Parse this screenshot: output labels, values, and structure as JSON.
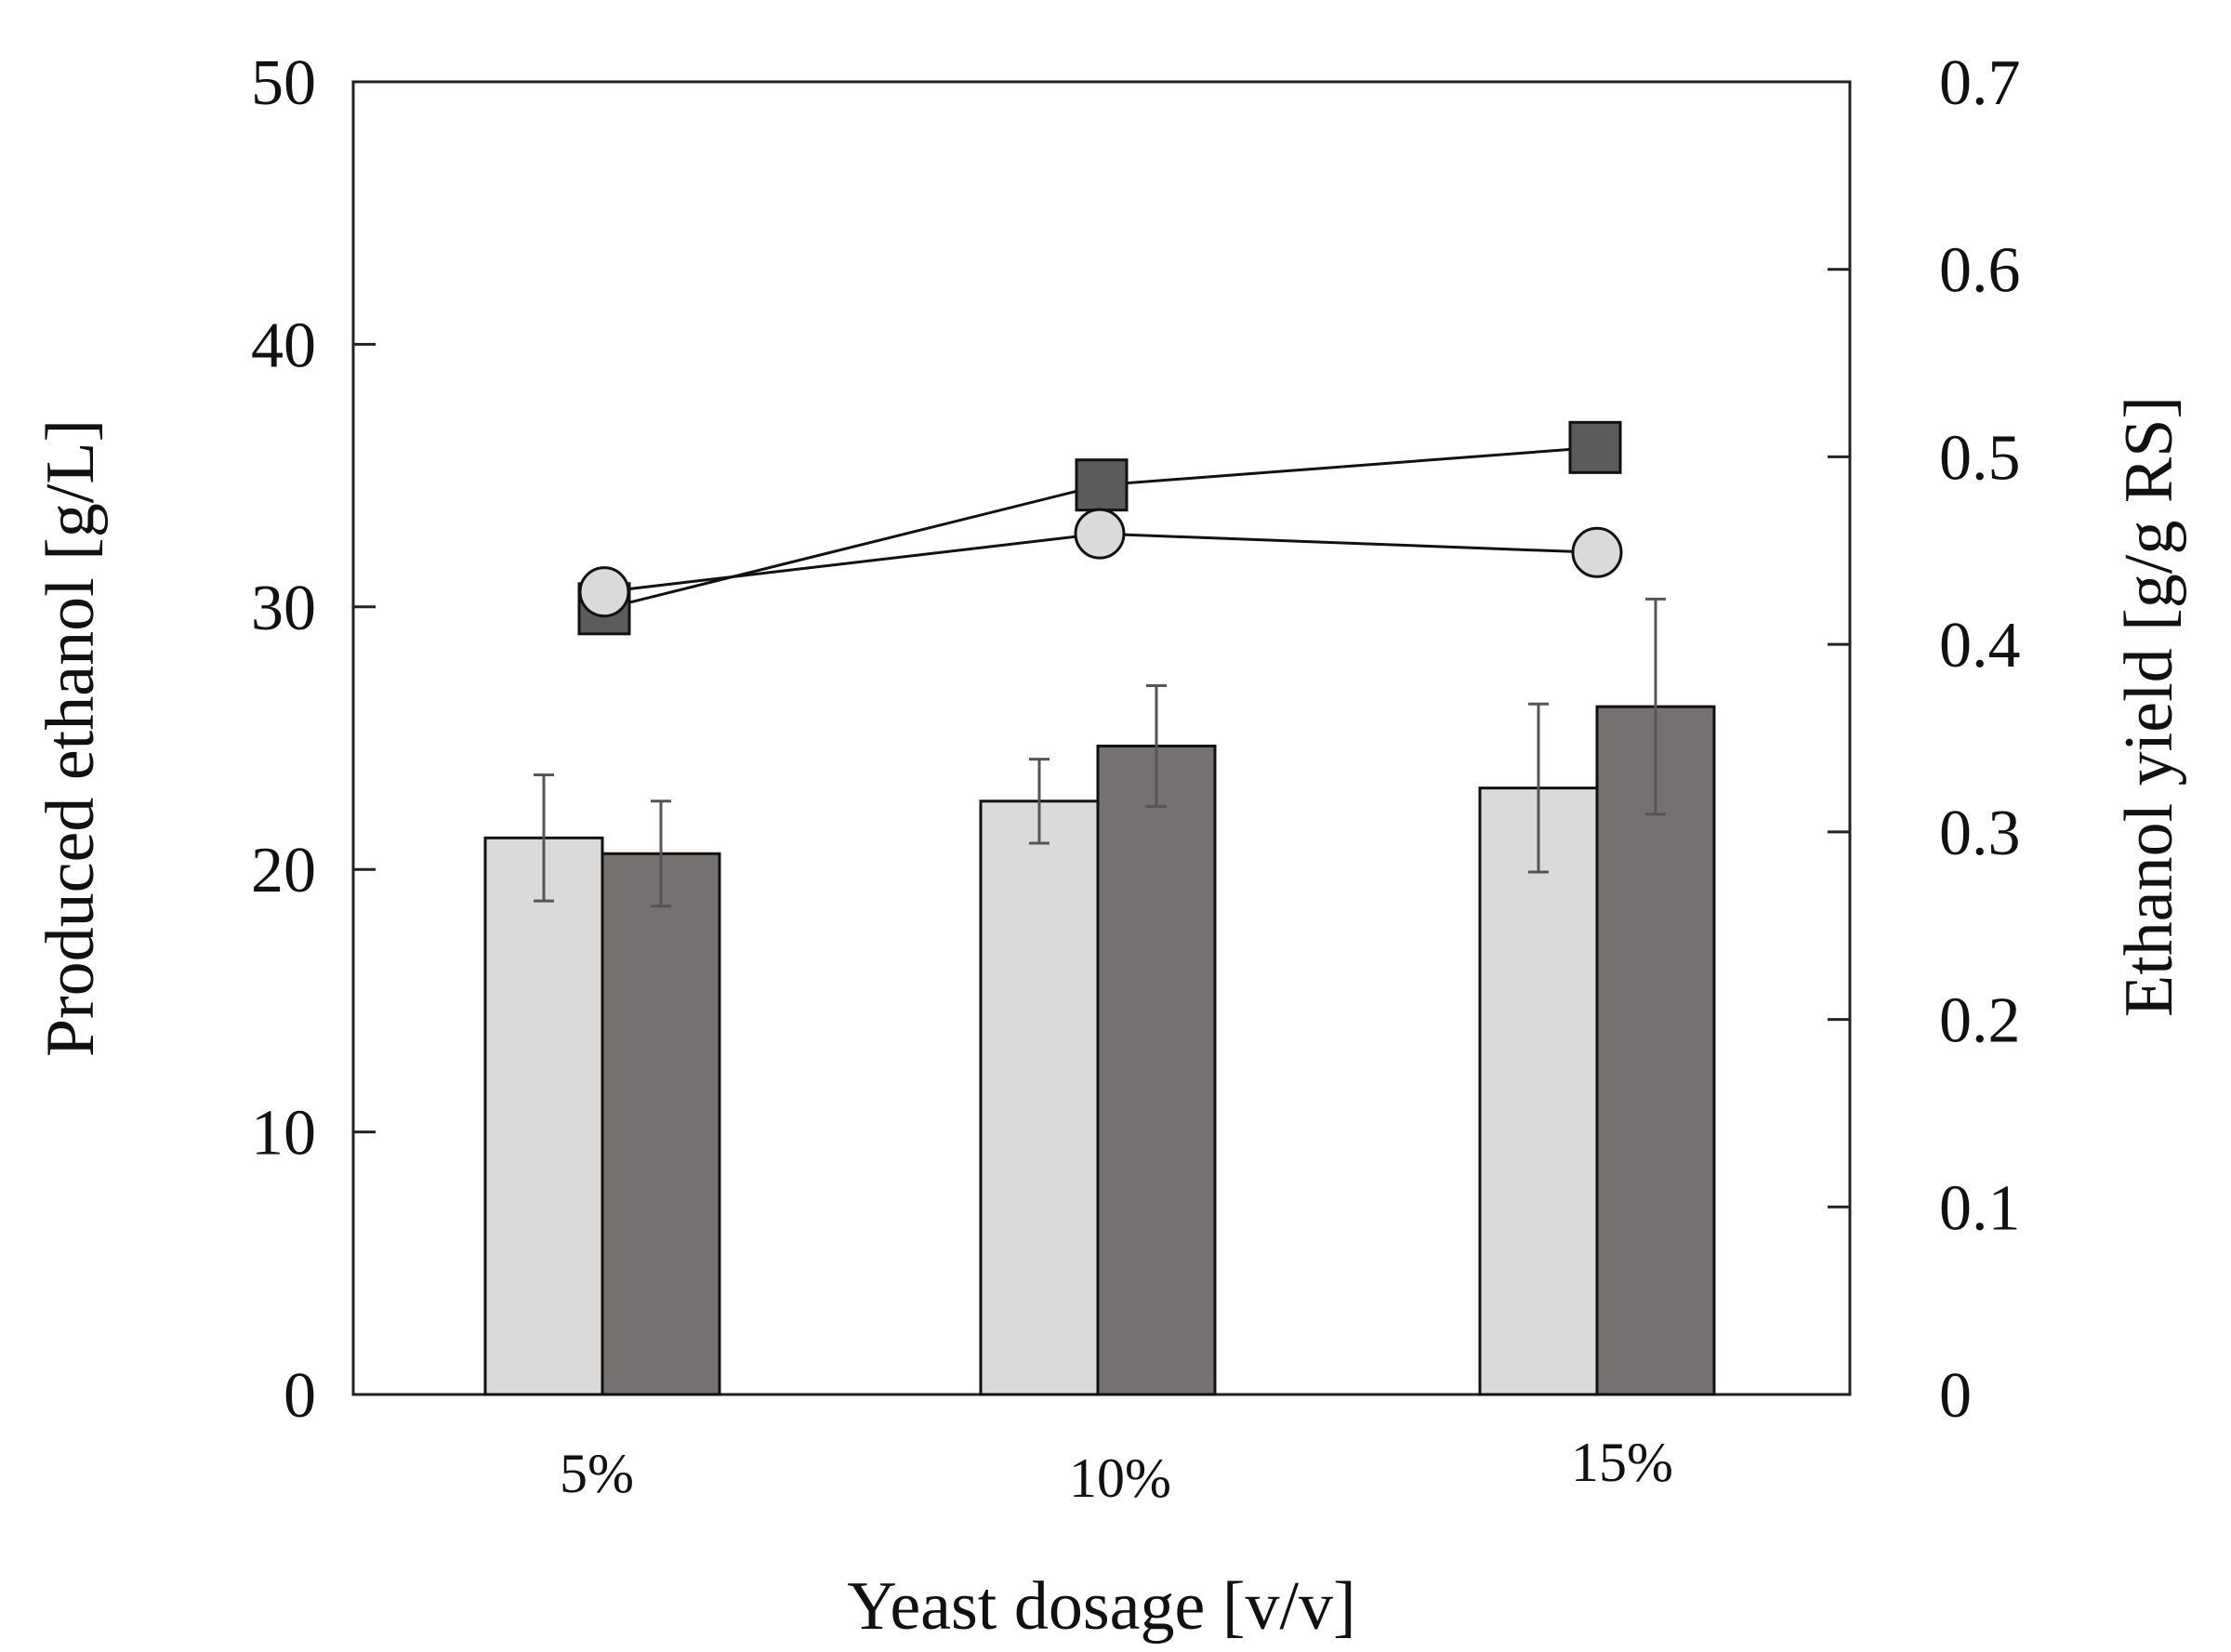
{
  "chart_data": {
    "type": "bar",
    "title": "",
    "xlabel": "Yeast dosage [v/v]",
    "ylabel": "Produced ethanol [g/L]",
    "y2label": "Ethanol yield [g/g RS]",
    "categories": [
      "5%",
      "10%",
      "15%"
    ],
    "ylim": [
      0,
      50
    ],
    "y2lim": [
      0,
      0.7
    ],
    "yticks": [
      0,
      10,
      20,
      30,
      40,
      50
    ],
    "y2ticks": [
      0,
      0.1,
      0.2,
      0.3,
      0.4,
      0.5,
      0.6,
      0.7
    ],
    "y2tick_labels": [
      "0",
      "0.1",
      "0.2",
      "0.3",
      "0.4",
      "0.5",
      "0.6",
      "0.7"
    ],
    "legend": "none",
    "grid": false,
    "series": [
      {
        "name": "produced ethanol (light bars)",
        "chart": "bar",
        "axis": "left",
        "color": "#dadada",
        "values": [
          21.2,
          22.6,
          23.1
        ],
        "errors": [
          2.4,
          1.6,
          3.2
        ]
      },
      {
        "name": "produced ethanol (dark bars)",
        "chart": "bar",
        "axis": "left",
        "color": "#757170",
        "values": [
          20.6,
          24.7,
          26.2
        ],
        "errors": [
          2.0,
          2.3,
          4.1
        ]
      },
      {
        "name": "ethanol yield (circles)",
        "chart": "line",
        "marker": "circle",
        "axis": "right",
        "color": "#dadada",
        "values": [
          0.428,
          0.459,
          0.449
        ]
      },
      {
        "name": "ethanol yield (squares)",
        "chart": "line",
        "marker": "square",
        "axis": "right",
        "color": "#5b5b5b",
        "values": [
          0.419,
          0.485,
          0.505
        ]
      }
    ]
  }
}
